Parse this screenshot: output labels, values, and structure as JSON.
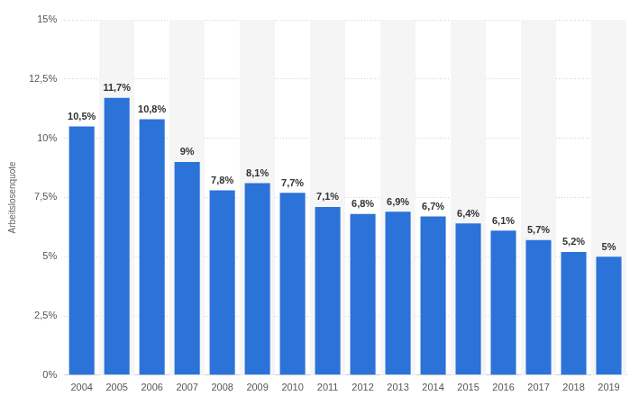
{
  "chart_data": {
    "type": "bar",
    "y_label": "Arbeitslosenquote",
    "categories": [
      "2004",
      "2005",
      "2006",
      "2007",
      "2008",
      "2009",
      "2010",
      "2011",
      "2012",
      "2013",
      "2014",
      "2015",
      "2016",
      "2017",
      "2018",
      "2019"
    ],
    "values": [
      10.5,
      11.7,
      10.8,
      9,
      7.8,
      8.1,
      7.7,
      7.1,
      6.8,
      6.9,
      6.7,
      6.4,
      6.1,
      5.7,
      5.2,
      5
    ],
    "value_labels": [
      "10,5%",
      "11,7%",
      "10,8%",
      "9%",
      "7,8%",
      "8,1%",
      "7,7%",
      "7,1%",
      "6,8%",
      "6,9%",
      "6,7%",
      "6,4%",
      "6,1%",
      "5,7%",
      "5,2%",
      "5%"
    ],
    "color": "#2b72d9",
    "ylim": [
      0,
      15
    ],
    "yticks": [
      {
        "value": 0,
        "label": "0%"
      },
      {
        "value": 2.5,
        "label": "2,5%"
      },
      {
        "value": 5,
        "label": "5%"
      },
      {
        "value": 7.5,
        "label": "7,5%"
      },
      {
        "value": 10,
        "label": "10%"
      },
      {
        "value": 12.5,
        "label": "12,5%"
      },
      {
        "value": 15,
        "label": "15%"
      }
    ],
    "grid": true,
    "data_labels": true
  }
}
